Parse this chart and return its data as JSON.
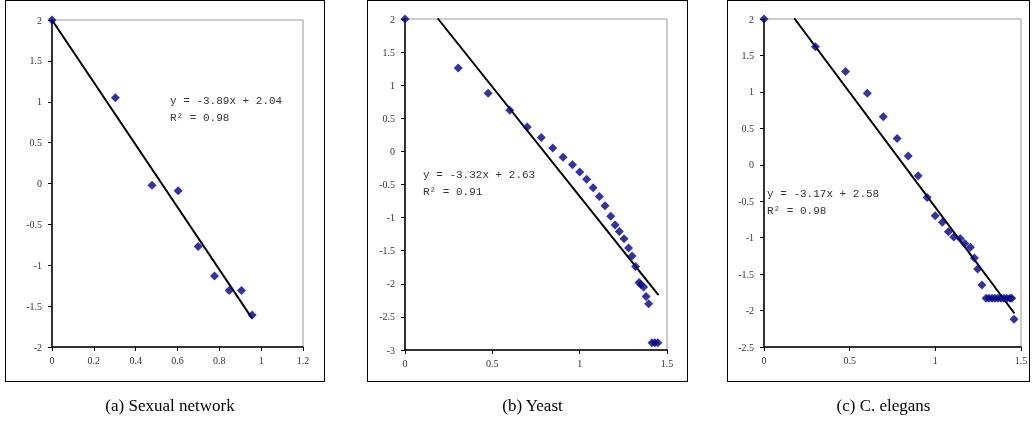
{
  "chart_data": [
    {
      "type": "scatter",
      "title": "(a) Sexual network",
      "xlim": [
        0,
        1.2
      ],
      "xticks": [
        0,
        0.2,
        0.4,
        0.6,
        0.8,
        1,
        1.2
      ],
      "ylim": [
        -2,
        2
      ],
      "yticks": [
        -2,
        -1.5,
        -1,
        -0.5,
        0,
        0.5,
        1,
        1.5,
        2
      ],
      "grid": false,
      "annotations": [
        "y = -3.89x + 2.04",
        "R² = 0.98"
      ],
      "series": [
        {
          "type": "scatter",
          "color": "#00008b",
          "marker": "diamond",
          "x": [
            0,
            0.303,
            0.478,
            0.603,
            0.699,
            0.777,
            0.847,
            0.906,
            0.957
          ],
          "values": [
            2,
            1.05,
            -0.02,
            -0.09,
            -0.77,
            -1.13,
            -1.31,
            -1.31,
            -1.61
          ]
        },
        {
          "type": "line",
          "color": "#000000",
          "marker": "none",
          "x": [
            0,
            0.954
          ],
          "values": [
            2,
            -1.64
          ]
        }
      ]
    },
    {
      "type": "scatter",
      "title": "(b) Yeast",
      "xlim": [
        0,
        1.5
      ],
      "xticks": [
        0,
        0.5,
        1,
        1.5
      ],
      "ylim": [
        -3,
        2
      ],
      "yticks": [
        -3,
        -2.5,
        -2,
        -1.5,
        -1,
        -0.5,
        0,
        0.5,
        1,
        1.5,
        2
      ],
      "grid": false,
      "annotations": [
        "y = -3.32x + 2.63",
        "R² = 0.91"
      ],
      "series": [
        {
          "type": "scatter",
          "color": "#00008b",
          "marker": "diamond",
          "x": [
            0,
            0.305,
            0.476,
            0.6,
            0.7,
            0.78,
            0.846,
            0.905,
            0.959,
            1,
            1.04,
            1.077,
            1.113,
            1.145,
            1.178,
            1.203,
            1.227,
            1.254,
            1.28,
            1.3,
            1.32,
            1.34,
            1.35,
            1.366,
            1.38,
            1.395,
            1.414,
            1.431,
            1.448
          ],
          "values": [
            2,
            1.26,
            0.88,
            0.62,
            0.37,
            0.21,
            0.05,
            -0.09,
            -0.2,
            -0.31,
            -0.42,
            -0.55,
            -0.68,
            -0.82,
            -0.98,
            -1.11,
            -1.21,
            -1.32,
            -1.46,
            -1.58,
            -1.74,
            -1.98,
            -2.01,
            -2.05,
            -2.19,
            -2.3,
            -2.89,
            -2.89,
            -2.89
          ]
        },
        {
          "type": "line",
          "color": "#000000",
          "marker": "none",
          "x": [
            0.19,
            1.448
          ],
          "values": [
            2,
            -2.16
          ]
        }
      ]
    },
    {
      "type": "scatter",
      "title": "(c) C. elegans",
      "xlim": [
        0,
        1.5
      ],
      "xticks": [
        0,
        0.5,
        1,
        1.5
      ],
      "ylim": [
        -2.5,
        2
      ],
      "yticks": [
        -2.5,
        -2,
        -1.5,
        -1,
        -0.5,
        0,
        0.5,
        1,
        1.5,
        2
      ],
      "grid": false,
      "annotations": [
        "y = -3.17x + 2.58",
        "R² = 0.98"
      ],
      "series": [
        {
          "type": "scatter",
          "color": "#00008b",
          "marker": "diamond",
          "x": [
            0,
            0.3,
            0.476,
            0.603,
            0.696,
            0.777,
            0.842,
            0.9,
            0.952,
            0.999,
            1.041,
            1.076,
            1.108,
            1.145,
            1.172,
            1.205,
            1.228,
            1.247,
            1.272,
            1.296,
            1.313,
            1.331,
            1.348,
            1.365,
            1.383,
            1.4,
            1.417,
            1.435,
            1.446,
            1.459
          ],
          "values": [
            2,
            1.62,
            1.28,
            0.98,
            0.66,
            0.36,
            0.12,
            -0.15,
            -0.45,
            -0.7,
            -0.79,
            -0.92,
            -0.99,
            -1.01,
            -1.08,
            -1.13,
            -1.28,
            -1.43,
            -1.65,
            -1.83,
            -1.83,
            -1.83,
            -1.83,
            -1.83,
            -1.83,
            -1.83,
            -1.83,
            -1.83,
            -1.83,
            -2.12
          ]
        },
        {
          "type": "line",
          "color": "#000000",
          "marker": "none",
          "x": [
            0.18,
            1.459
          ],
          "values": [
            2,
            -2.03
          ]
        }
      ]
    }
  ]
}
